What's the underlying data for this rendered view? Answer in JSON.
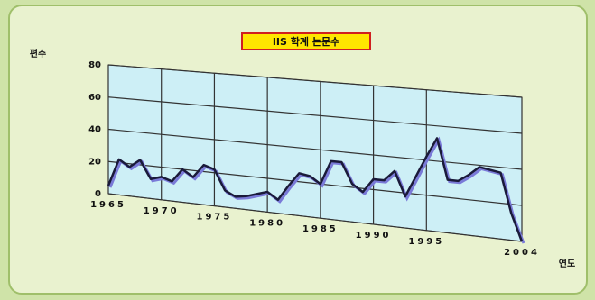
{
  "chart_data": {
    "type": "line",
    "title": "IIS 학계 논문수",
    "ylabel": "편수",
    "xlabel": "연도",
    "x": [
      1965,
      1966,
      1967,
      1968,
      1969,
      1970,
      1971,
      1972,
      1973,
      1974,
      1975,
      1976,
      1977,
      1978,
      1979,
      1980,
      1981,
      1982,
      1983,
      1984,
      1985,
      1986,
      1987,
      1988,
      1989,
      1990,
      1991,
      1992,
      1993,
      1994,
      1995,
      1996,
      1997,
      1998,
      1999,
      2000,
      2001,
      2002,
      2003,
      2004
    ],
    "series": [
      {
        "color": "#1a1a3a",
        "values": [
          5,
          22,
          18,
          23,
          12,
          14,
          12,
          20,
          16,
          24,
          22,
          10,
          7,
          8,
          10,
          12,
          8,
          17,
          25,
          24,
          20,
          34,
          34,
          22,
          18,
          26,
          26,
          32,
          18,
          30,
          42,
          53,
          30,
          30,
          34,
          39,
          38,
          37,
          15,
          0
        ]
      }
    ],
    "xlim": [
      1965,
      2004
    ],
    "xticks": [
      1965,
      1970,
      1975,
      1980,
      1985,
      1990,
      1995,
      2004
    ],
    "ylim": [
      0,
      80
    ],
    "yticks": [
      0,
      20,
      40,
      60,
      80
    ],
    "grid": true
  }
}
